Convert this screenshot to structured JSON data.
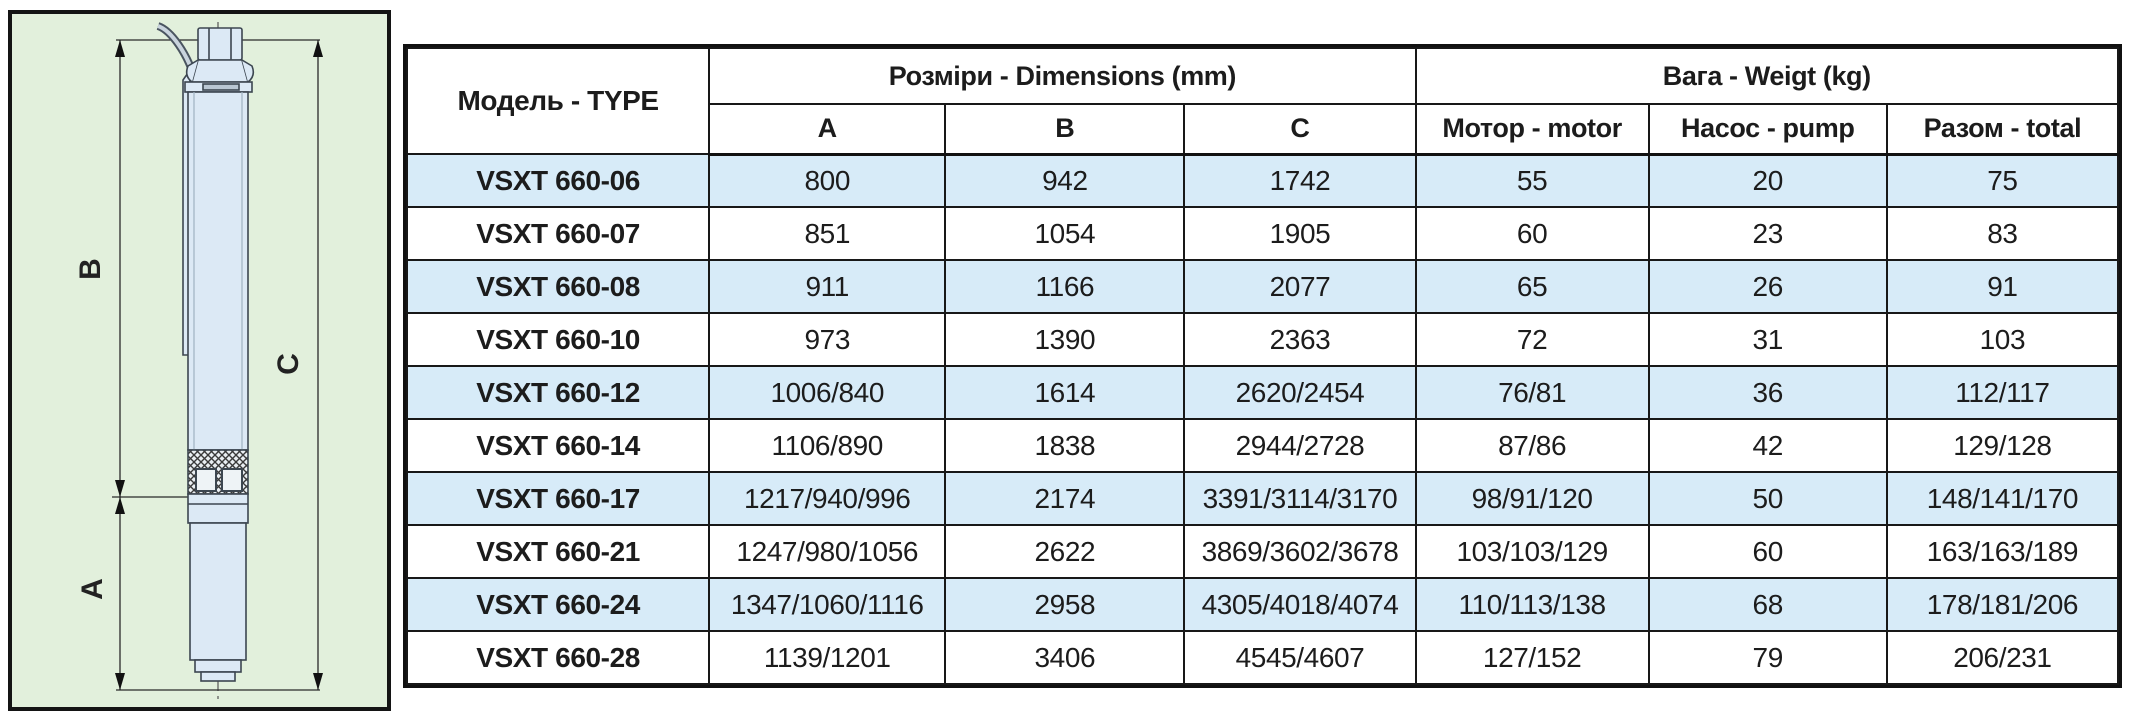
{
  "diagram": {
    "dim_a_label": "A",
    "dim_b_label": "B",
    "dim_c_label": "C"
  },
  "table": {
    "header": {
      "model": "Модель - TYPE",
      "dimensions_group": "Розміри - Dimensions (mm)",
      "weight_group": "Вага - Weigt (kg)",
      "col_a": "A",
      "col_b": "B",
      "col_c": "C",
      "motor": "Мотор - motor",
      "pump": "Насос - pump",
      "total": "Разом - total"
    },
    "rows": [
      {
        "model": "VSXT 660-06",
        "a": "800",
        "b": "942",
        "c": "1742",
        "motor": "55",
        "pump": "20",
        "total": "75"
      },
      {
        "model": "VSXT 660-07",
        "a": "851",
        "b": "1054",
        "c": "1905",
        "motor": "60",
        "pump": "23",
        "total": "83"
      },
      {
        "model": "VSXT 660-08",
        "a": "911",
        "b": "1166",
        "c": "2077",
        "motor": "65",
        "pump": "26",
        "total": "91"
      },
      {
        "model": "VSXT 660-10",
        "a": "973",
        "b": "1390",
        "c": "2363",
        "motor": "72",
        "pump": "31",
        "total": "103"
      },
      {
        "model": "VSXT 660-12",
        "a": "1006/840",
        "b": "1614",
        "c": "2620/2454",
        "motor": "76/81",
        "pump": "36",
        "total": "112/117"
      },
      {
        "model": "VSXT 660-14",
        "a": "1106/890",
        "b": "1838",
        "c": "2944/2728",
        "motor": "87/86",
        "pump": "42",
        "total": "129/128"
      },
      {
        "model": "VSXT 660-17",
        "a": "1217/940/996",
        "b": "2174",
        "c": "3391/3114/3170",
        "motor": "98/91/120",
        "pump": "50",
        "total": "148/141/170"
      },
      {
        "model": "VSXT 660-21",
        "a": "1247/980/1056",
        "b": "2622",
        "c": "3869/3602/3678",
        "motor": "103/103/129",
        "pump": "60",
        "total": "163/163/189"
      },
      {
        "model": "VSXT 660-24",
        "a": "1347/1060/1116",
        "b": "2958",
        "c": "4305/4018/4074",
        "motor": "110/113/138",
        "pump": "68",
        "total": "178/181/206"
      },
      {
        "model": "VSXT 660-28",
        "a": "1139/1201",
        "b": "3406",
        "c": "4545/4607",
        "motor": "127/152",
        "pump": "79",
        "total": "206/231"
      }
    ]
  },
  "colors": {
    "row_highlight": "#d7ebf8",
    "diagram_bg": "#e2f0dc"
  }
}
